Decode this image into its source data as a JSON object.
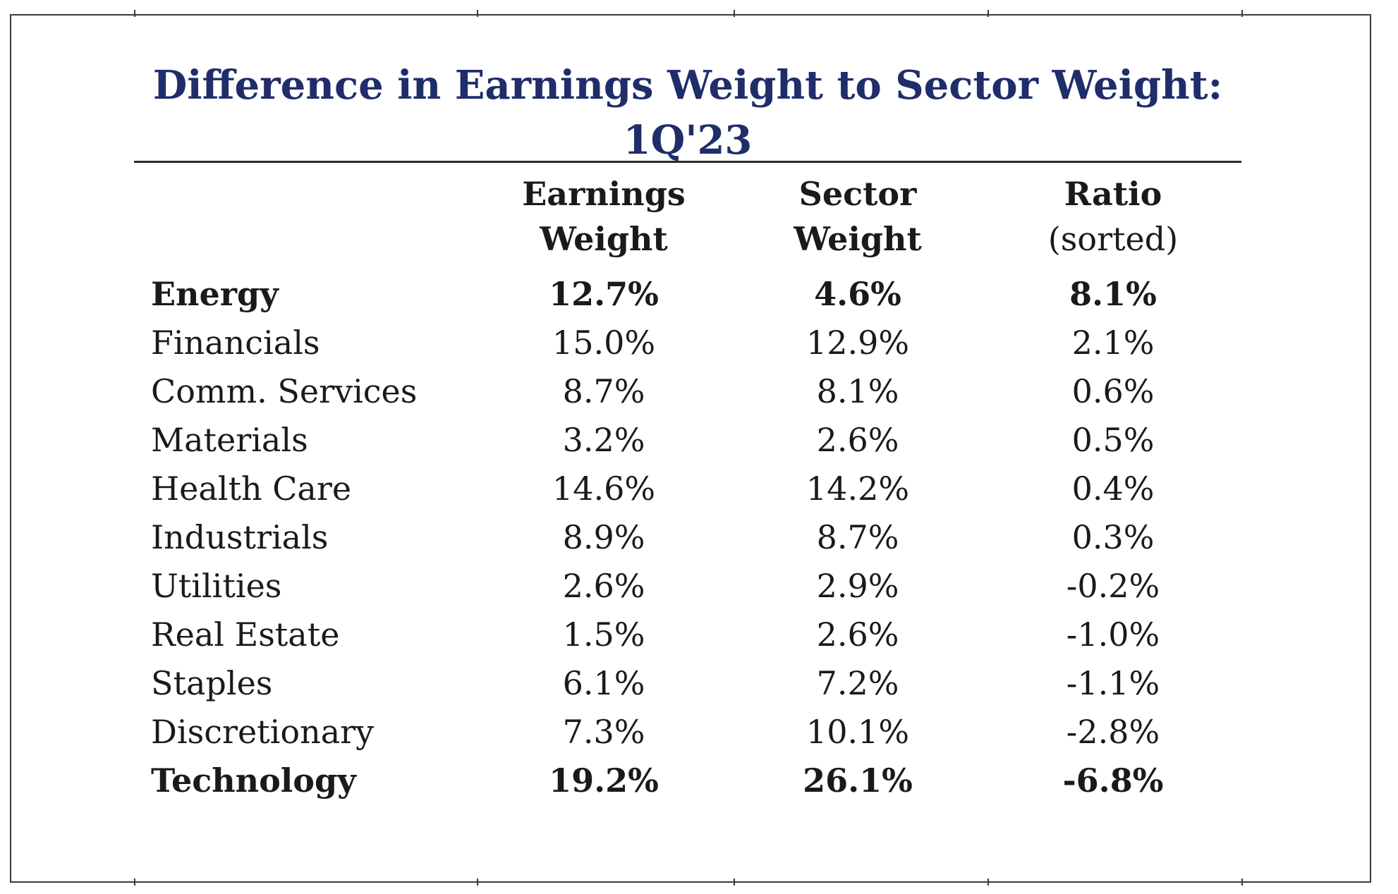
{
  "chart_data": {
    "type": "table",
    "title_line1": "Difference in Earnings Weight to Sector Weight:",
    "title_line2": "1Q'23",
    "columns": [
      {
        "line1": "Earnings",
        "line2": "Weight"
      },
      {
        "line1": "Sector",
        "line2": "Weight"
      },
      {
        "line1": "Ratio",
        "line2": "(sorted)"
      }
    ],
    "rows": [
      {
        "sector": "Energy",
        "earnings_weight": "12.7%",
        "sector_weight": "4.6%",
        "ratio": "8.1%",
        "bold": true
      },
      {
        "sector": "Financials",
        "earnings_weight": "15.0%",
        "sector_weight": "12.9%",
        "ratio": "2.1%",
        "bold": false
      },
      {
        "sector": "Comm. Services",
        "earnings_weight": "8.7%",
        "sector_weight": "8.1%",
        "ratio": "0.6%",
        "bold": false
      },
      {
        "sector": "Materials",
        "earnings_weight": "3.2%",
        "sector_weight": "2.6%",
        "ratio": "0.5%",
        "bold": false
      },
      {
        "sector": "Health Care",
        "earnings_weight": "14.6%",
        "sector_weight": "14.2%",
        "ratio": "0.4%",
        "bold": false
      },
      {
        "sector": "Industrials",
        "earnings_weight": "8.9%",
        "sector_weight": "8.7%",
        "ratio": "0.3%",
        "bold": false
      },
      {
        "sector": "Utilities",
        "earnings_weight": "2.6%",
        "sector_weight": "2.9%",
        "ratio": "-0.2%",
        "bold": false
      },
      {
        "sector": "Real Estate",
        "earnings_weight": "1.5%",
        "sector_weight": "2.6%",
        "ratio": "-1.0%",
        "bold": false
      },
      {
        "sector": "Staples",
        "earnings_weight": "6.1%",
        "sector_weight": "7.2%",
        "ratio": "-1.1%",
        "bold": false
      },
      {
        "sector": "Discretionary",
        "earnings_weight": "7.3%",
        "sector_weight": "10.1%",
        "ratio": "-2.8%",
        "bold": false
      },
      {
        "sector": "Technology",
        "earnings_weight": "19.2%",
        "sector_weight": "26.1%",
        "ratio": "-6.8%",
        "bold": true
      }
    ]
  },
  "colors": {
    "title": "#1f2d6b",
    "text": "#1a1a1a",
    "rule": "#2a2a2a"
  }
}
